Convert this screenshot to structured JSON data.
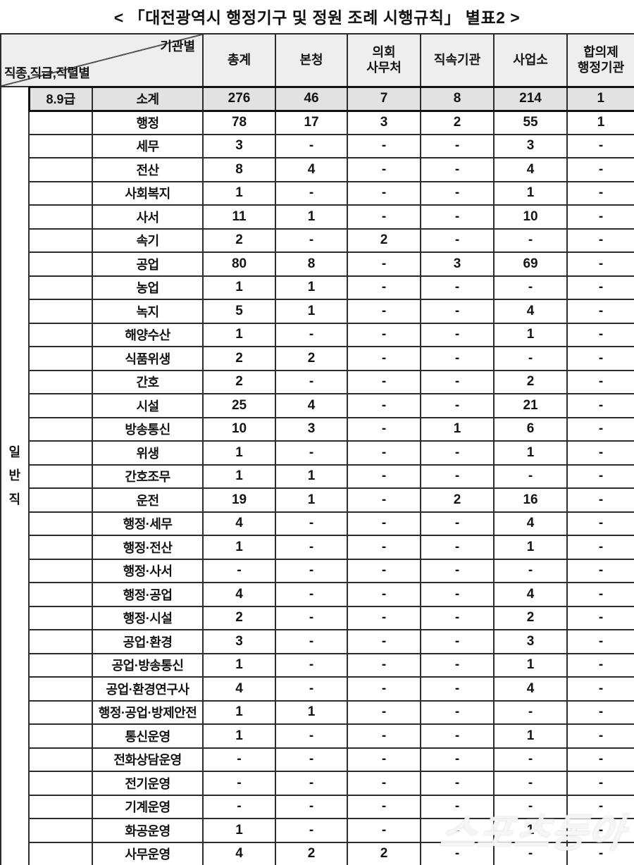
{
  "title": "<  「대전광역시  행정기구  및  정원  조례  시행규칙」  별표2 >",
  "table": {
    "corner_top": "기관별",
    "corner_bottom": "직종,직급,직렬별",
    "columns": [
      "총계",
      "본청",
      "의회\n사무처",
      "직속기관",
      "사업소",
      "합의제\n행정기관"
    ],
    "side_label": "일반직",
    "subtotal": {
      "grade": "8.9급",
      "label": "소계",
      "values": [
        "276",
        "46",
        "7",
        "8",
        "214",
        "1"
      ]
    },
    "rows": [
      {
        "label": "행정",
        "values": [
          "78",
          "17",
          "3",
          "2",
          "55",
          "1"
        ]
      },
      {
        "label": "세무",
        "values": [
          "3",
          "-",
          "-",
          "-",
          "3",
          "-"
        ]
      },
      {
        "label": "전산",
        "values": [
          "8",
          "4",
          "-",
          "-",
          "4",
          "-"
        ]
      },
      {
        "label": "사회복지",
        "values": [
          "1",
          "-",
          "-",
          "-",
          "1",
          "-"
        ]
      },
      {
        "label": "사서",
        "values": [
          "11",
          "1",
          "-",
          "-",
          "10",
          "-"
        ]
      },
      {
        "label": "속기",
        "values": [
          "2",
          "-",
          "2",
          "-",
          "-",
          "-"
        ]
      },
      {
        "label": "공업",
        "values": [
          "80",
          "8",
          "-",
          "3",
          "69",
          "-"
        ]
      },
      {
        "label": "농업",
        "values": [
          "1",
          "1",
          "-",
          "-",
          "-",
          "-"
        ]
      },
      {
        "label": "녹지",
        "values": [
          "5",
          "1",
          "-",
          "-",
          "4",
          "-"
        ]
      },
      {
        "label": "해양수산",
        "values": [
          "1",
          "-",
          "-",
          "-",
          "1",
          "-"
        ]
      },
      {
        "label": "식품위생",
        "values": [
          "2",
          "2",
          "-",
          "-",
          "-",
          "-"
        ]
      },
      {
        "label": "간호",
        "values": [
          "2",
          "-",
          "-",
          "-",
          "2",
          "-"
        ]
      },
      {
        "label": "시설",
        "values": [
          "25",
          "4",
          "-",
          "-",
          "21",
          "-"
        ]
      },
      {
        "label": "방송통신",
        "values": [
          "10",
          "3",
          "-",
          "1",
          "6",
          "-"
        ]
      },
      {
        "label": "위생",
        "values": [
          "1",
          "-",
          "-",
          "-",
          "1",
          "-"
        ]
      },
      {
        "label": "간호조무",
        "values": [
          "1",
          "1",
          "-",
          "-",
          "-",
          "-"
        ]
      },
      {
        "label": "운전",
        "values": [
          "19",
          "1",
          "-",
          "2",
          "16",
          "-"
        ]
      },
      {
        "label": "행정·세무",
        "values": [
          "4",
          "-",
          "-",
          "-",
          "4",
          "-"
        ]
      },
      {
        "label": "행정·전산",
        "values": [
          "1",
          "-",
          "-",
          "-",
          "1",
          "-"
        ]
      },
      {
        "label": "행정·사서",
        "values": [
          "-",
          "-",
          "-",
          "-",
          "-",
          "-"
        ]
      },
      {
        "label": "행정·공업",
        "values": [
          "4",
          "-",
          "-",
          "-",
          "4",
          "-"
        ]
      },
      {
        "label": "행정·시설",
        "values": [
          "2",
          "-",
          "-",
          "-",
          "2",
          "-"
        ]
      },
      {
        "label": "공업·환경",
        "values": [
          "3",
          "-",
          "-",
          "-",
          "3",
          "-"
        ]
      },
      {
        "label": "공업·방송통신",
        "values": [
          "1",
          "-",
          "-",
          "-",
          "1",
          "-"
        ]
      },
      {
        "label": "공업·환경연구사",
        "values": [
          "4",
          "-",
          "-",
          "-",
          "4",
          "-"
        ]
      },
      {
        "label": "행정·공업·방제안전",
        "values": [
          "1",
          "1",
          "-",
          "-",
          "-",
          "-"
        ]
      },
      {
        "label": "통신운영",
        "values": [
          "1",
          "-",
          "-",
          "-",
          "1",
          "-"
        ]
      },
      {
        "label": "전화상담운영",
        "values": [
          "-",
          "-",
          "-",
          "-",
          "-",
          "-"
        ]
      },
      {
        "label": "전기운영",
        "values": [
          "-",
          "-",
          "-",
          "-",
          "-",
          "-"
        ]
      },
      {
        "label": "기계운영",
        "values": [
          "-",
          "-",
          "-",
          "-",
          "-",
          "-"
        ]
      },
      {
        "label": "화공운영",
        "values": [
          "1",
          "-",
          "-",
          "-",
          "1",
          "-"
        ]
      },
      {
        "label": "사무운영",
        "values": [
          "4",
          "2",
          "2",
          "-",
          "-",
          "-"
        ]
      }
    ]
  },
  "watermark": "스포츠동아",
  "colors": {
    "header_bg": "#eeeeee",
    "subtotal_bg": "#e2e2e2",
    "grid_line": "#2c2c2c"
  }
}
